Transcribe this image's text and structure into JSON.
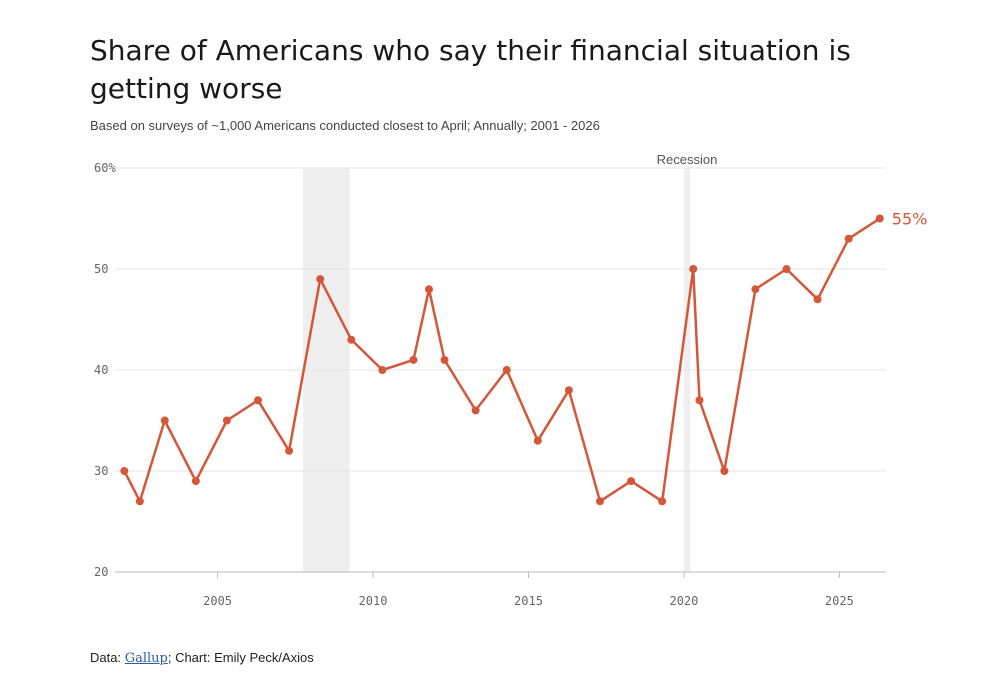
{
  "title": "Share of Americans who say their financial situation is getting worse",
  "subtitle": "Based on surveys of ~1,000 Americans conducted closest to April; Annually; 2001 - 2026",
  "footer": {
    "prefix": "Data: ",
    "source": "Gallup",
    "suffix": "; Chart: Emily Peck/Axios"
  },
  "colors": {
    "line": "#d4573a",
    "recession": "#efefef",
    "grid": "#e6e6e6",
    "axis": "#bbbbbb"
  },
  "chart_data": {
    "type": "line",
    "title": "Share of Americans who say their financial situation is getting worse",
    "xlabel": "",
    "ylabel": "",
    "xlim": [
      2001.7,
      2026.5
    ],
    "ylim": [
      20,
      60
    ],
    "grid": true,
    "xticks": [
      2005,
      2010,
      2015,
      2020,
      2025
    ],
    "xtick_labels": [
      "2005",
      "2010",
      "2015",
      "2020",
      "2025"
    ],
    "yticks": [
      20,
      30,
      40,
      50,
      60
    ],
    "ytick_labels": [
      "20",
      "30",
      "40",
      "50",
      "60%"
    ],
    "recession_label": "Recession",
    "recessions": [
      [
        2007.75,
        2009.25
      ],
      [
        2020.0,
        2020.2
      ]
    ],
    "end_label": "55%",
    "series": [
      {
        "x": [
          2002.0,
          2002.5,
          2003.3,
          2004.3,
          2005.3,
          2006.3,
          2007.3,
          2008.3,
          2009.3,
          2010.3,
          2011.3,
          2011.8,
          2012.3,
          2013.3,
          2014.3,
          2015.3,
          2016.3,
          2017.3,
          2018.3,
          2019.3,
          2020.3,
          2020.5,
          2021.3,
          2022.3,
          2023.3,
          2024.3,
          2025.3,
          2026.3
        ],
        "values": [
          30,
          27,
          35,
          29,
          35,
          37,
          32,
          49,
          43,
          40,
          41,
          48,
          41,
          36,
          40,
          33,
          38,
          27,
          29,
          27,
          50,
          37,
          30,
          48,
          50,
          47,
          53,
          55
        ]
      }
    ]
  }
}
